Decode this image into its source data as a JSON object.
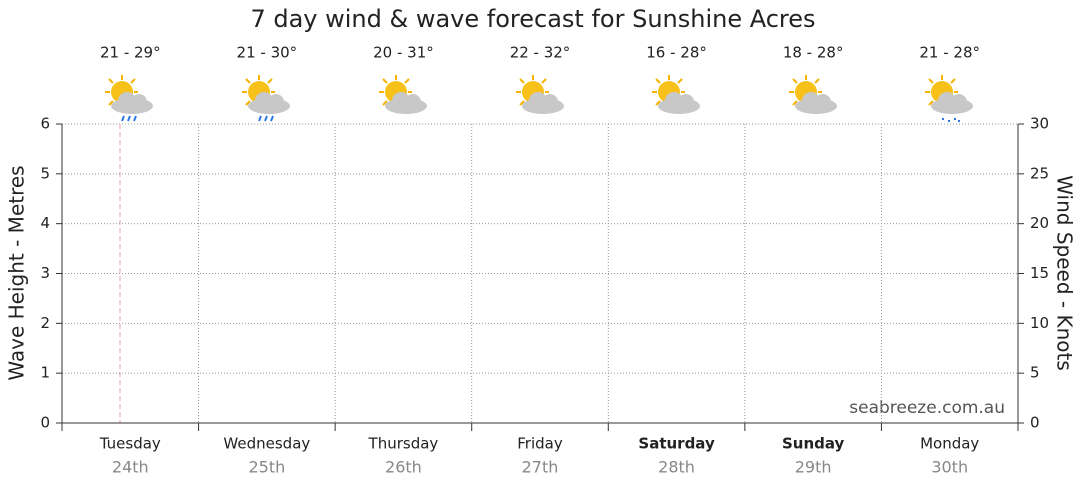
{
  "chart_data": {
    "type": "line",
    "title": "7 day wind & wave forecast for Sunshine Acres",
    "temperatures": [
      "21 - 29°",
      "21 - 30°",
      "20 - 31°",
      "22 - 32°",
      "16 - 28°",
      "18 - 28°",
      "21 - 28°"
    ],
    "categories": [
      "Tuesday",
      "Wednesday",
      "Thursday",
      "Friday",
      "Saturday",
      "Sunday",
      "Monday"
    ],
    "dates": [
      "24th",
      "25th",
      "26th",
      "27th",
      "28th",
      "29th",
      "30th"
    ],
    "ylabel": "Wave Height - Metres",
    "y2label": "Wind Speed - Knots",
    "ylim": [
      0,
      6
    ],
    "yticks": [
      0,
      1,
      2,
      3,
      4,
      5,
      6
    ],
    "y2lim": [
      0,
      30
    ],
    "y2ticks": [
      0,
      5,
      10,
      15,
      20,
      25,
      30
    ],
    "grid": true,
    "source": "seabreeze.com.au"
  }
}
